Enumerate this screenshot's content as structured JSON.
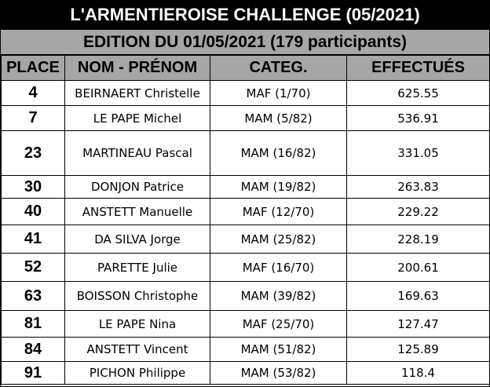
{
  "title": "L'ARMENTIEROISE CHALLENGE (05/2021)",
  "subtitle": "EDITION DU 01/05/2021 (179 participants)",
  "colors": {
    "title_background": "#000000",
    "title_text": "#ffffff",
    "header_background": "#a6a6a6"
  },
  "headers": {
    "place": "PLACE",
    "name": "NOM - PRÉNOM",
    "category": "CATEG.",
    "done": "EFFECTUÉS"
  },
  "rows": [
    {
      "place": "4",
      "name": "BEIRNAERT Christelle",
      "category": "MAF (1/70)",
      "done": "625.55"
    },
    {
      "place": "7",
      "name": "LE PAPE Michel",
      "category": "MAM (5/82)",
      "done": "536.91"
    },
    {
      "place": "23",
      "name": "MARTINEAU Pascal",
      "category": "MAM (16/82)",
      "done": "331.05"
    },
    {
      "place": "30",
      "name": "DONJON Patrice",
      "category": "MAM (19/82)",
      "done": "263.83"
    },
    {
      "place": "40",
      "name": "ANSTETT Manuelle",
      "category": "MAF (12/70)",
      "done": "229.22"
    },
    {
      "place": "41",
      "name": "DA SILVA Jorge",
      "category": "MAM (25/82)",
      "done": "228.19"
    },
    {
      "place": "52",
      "name": "PARETTE Julie",
      "category": "MAF (16/70)",
      "done": "200.61"
    },
    {
      "place": "63",
      "name": "BOISSON Christophe",
      "category": "MAM (39/82)",
      "done": "169.63"
    },
    {
      "place": "81",
      "name": "LE PAPE Nina",
      "category": "MAF (25/70)",
      "done": "127.47"
    },
    {
      "place": "84",
      "name": "ANSTETT Vincent",
      "category": "MAM (51/82)",
      "done": "125.89"
    },
    {
      "place": "91",
      "name": "PICHON Philippe",
      "category": "MAM (53/82)",
      "done": "118.4"
    }
  ]
}
